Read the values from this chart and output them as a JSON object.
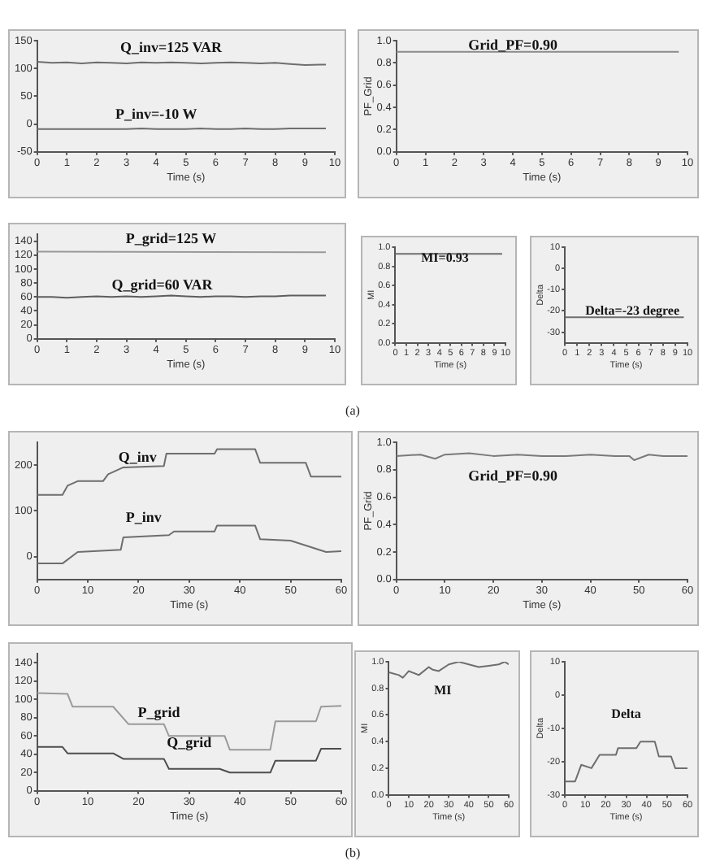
{
  "chart_data": [
    {
      "type": "line",
      "xlabel": "Time (s)",
      "xlim": [
        0,
        10
      ],
      "xticks": [
        0,
        1,
        2,
        3,
        4,
        5,
        6,
        7,
        8,
        9,
        10
      ],
      "ylim": [
        -50,
        150
      ],
      "yticks": [
        -50,
        0,
        50,
        100,
        150
      ],
      "grid": false,
      "legend": false,
      "marker": "none",
      "annotations": [
        "Q_inv=125 VAR",
        "P_inv=-10 W"
      ],
      "series": [
        {
          "color": "#6e6e6e",
          "x": [
            0,
            0.5,
            1,
            1.5,
            2,
            2.5,
            3,
            3.5,
            4,
            4.5,
            5,
            5.5,
            6,
            6.5,
            7,
            7.5,
            8,
            8.5,
            9,
            9.5,
            9.7
          ],
          "values": [
            112,
            110,
            111,
            109,
            111,
            110,
            109,
            111,
            110,
            111,
            110,
            109,
            110,
            111,
            110,
            109,
            110,
            108,
            106,
            107,
            107
          ]
        },
        {
          "color": "#6e6e6e",
          "x": [
            0,
            0.5,
            1,
            1.5,
            2,
            2.5,
            3,
            3.5,
            4,
            4.5,
            5,
            5.5,
            6,
            6.5,
            7,
            7.5,
            8,
            8.5,
            9,
            9.5,
            9.7
          ],
          "values": [
            -9,
            -9,
            -9,
            -9,
            -9,
            -9,
            -9,
            -8,
            -9,
            -9,
            -9,
            -8,
            -9,
            -9,
            -8,
            -9,
            -9,
            -8,
            -8,
            -8,
            -8
          ]
        }
      ]
    },
    {
      "type": "line",
      "xlabel": "Time (s)",
      "ylabel": "PF_Grid",
      "xlim": [
        0,
        10
      ],
      "xticks": [
        0,
        1,
        2,
        3,
        4,
        5,
        6,
        7,
        8,
        9,
        10
      ],
      "ylim": [
        0,
        1
      ],
      "yticks": [
        {
          "value": 0,
          "label": "0.0"
        },
        {
          "value": 0.2,
          "label": "0.2"
        },
        {
          "value": 0.4,
          "label": "0.4"
        },
        {
          "value": 0.6,
          "label": "0.6"
        },
        {
          "value": 0.8,
          "label": "0.8"
        },
        {
          "value": 1,
          "label": "1.0"
        }
      ],
      "grid": false,
      "legend": false,
      "marker": "none",
      "annotations": [
        "Grid_PF=0.90"
      ],
      "series": [
        {
          "color": "#8a8a8a",
          "x": [
            0,
            9.7
          ],
          "values": [
            0.9,
            0.9
          ]
        }
      ]
    },
    {
      "type": "line",
      "xlabel": "Time (s)",
      "xlim": [
        0,
        10
      ],
      "xticks": [
        0,
        1,
        2,
        3,
        4,
        5,
        6,
        7,
        8,
        9,
        10
      ],
      "ylim": [
        0,
        150
      ],
      "yticks": [
        0,
        20,
        40,
        60,
        80,
        100,
        120,
        140
      ],
      "grid": false,
      "legend": false,
      "marker": "none",
      "annotations": [
        "P_grid=125 W",
        "Q_grid=60 VAR"
      ],
      "series": [
        {
          "color": "#9a9a9a",
          "x": [
            0,
            9.7
          ],
          "values": [
            125,
            124
          ]
        },
        {
          "color": "#5e5e5e",
          "x": [
            0,
            0.5,
            1,
            1.5,
            2,
            2.5,
            3,
            3.5,
            4,
            4.5,
            5,
            5.5,
            6,
            6.5,
            7,
            7.5,
            8,
            8.5,
            9,
            9.5,
            9.7
          ],
          "values": [
            60,
            60,
            59,
            60,
            61,
            60,
            61,
            60,
            61,
            62,
            61,
            60,
            61,
            61,
            60,
            61,
            61,
            62,
            62,
            62,
            62
          ]
        }
      ]
    },
    {
      "type": "line",
      "xlabel": "Time (s)",
      "ylabel": "MI",
      "xlim": [
        0,
        10
      ],
      "xticks": [
        0,
        1,
        2,
        3,
        4,
        5,
        6,
        7,
        8,
        9,
        10
      ],
      "ylim": [
        0,
        1
      ],
      "yticks": [
        {
          "value": 0,
          "label": "0.0"
        },
        {
          "value": 0.2,
          "label": "0.2"
        },
        {
          "value": 0.4,
          "label": "0.4"
        },
        {
          "value": 0.6,
          "label": "0.6"
        },
        {
          "value": 0.8,
          "label": "0.8"
        },
        {
          "value": 1,
          "label": "1.0"
        }
      ],
      "grid": false,
      "legend": false,
      "marker": "none",
      "annotations": [
        "MI=0.93"
      ],
      "series": [
        {
          "color": "#6e6e6e",
          "x": [
            0,
            9.7
          ],
          "values": [
            0.93,
            0.93
          ]
        }
      ]
    },
    {
      "type": "line",
      "xlabel": "Time (s)",
      "ylabel": "Delta",
      "xlim": [
        0,
        10
      ],
      "xticks": [
        0,
        1,
        2,
        3,
        4,
        5,
        6,
        7,
        8,
        9,
        10
      ],
      "ylim": [
        -35,
        10
      ],
      "yticks": [
        -30,
        -20,
        -10,
        0,
        10
      ],
      "grid": false,
      "legend": false,
      "marker": "none",
      "annotations": [
        "Delta=-23 degree",
        "(a)"
      ],
      "series": [
        {
          "color": "#6e6e6e",
          "x": [
            0,
            9.7
          ],
          "values": [
            -23,
            -23
          ]
        }
      ]
    },
    {
      "type": "line",
      "xlabel": "Time (s)",
      "xlim": [
        0,
        60
      ],
      "xticks": [
        0,
        10,
        20,
        30,
        40,
        50,
        60
      ],
      "ylim": [
        -50,
        250
      ],
      "yticks": [
        0,
        100,
        200
      ],
      "grid": false,
      "legend": false,
      "marker": "none",
      "annotations": [
        "Q_inv",
        "P_inv"
      ],
      "series": [
        {
          "color": "#6e6e6e",
          "x": [
            0,
            5,
            6,
            8,
            13,
            14,
            17,
            25,
            25.5,
            35,
            35.5,
            43,
            44,
            53,
            54,
            60
          ],
          "values": [
            135,
            135,
            155,
            165,
            165,
            180,
            195,
            198,
            225,
            225,
            235,
            235,
            205,
            205,
            175,
            175
          ]
        },
        {
          "color": "#6e6e6e",
          "x": [
            0,
            5,
            8,
            16.5,
            17,
            26,
            27,
            35,
            35.5,
            43,
            44,
            50,
            57,
            60
          ],
          "values": [
            -15,
            -15,
            10,
            15,
            42,
            47,
            55,
            55,
            68,
            68,
            38,
            35,
            10,
            12
          ]
        }
      ]
    },
    {
      "type": "line",
      "xlabel": "Time (s)",
      "ylabel": "PF_Grid",
      "xlim": [
        0,
        60
      ],
      "xticks": [
        0,
        10,
        20,
        30,
        40,
        50,
        60
      ],
      "ylim": [
        0,
        1
      ],
      "yticks": [
        {
          "value": 0,
          "label": "0.0"
        },
        {
          "value": 0.2,
          "label": "0.2"
        },
        {
          "value": 0.4,
          "label": "0.4"
        },
        {
          "value": 0.6,
          "label": "0.6"
        },
        {
          "value": 0.8,
          "label": "0.8"
        },
        {
          "value": 1,
          "label": "1.0"
        }
      ],
      "grid": false,
      "legend": false,
      "marker": "none",
      "annotations": [
        "Grid_PF=0.90"
      ],
      "series": [
        {
          "color": "#7a7a7a",
          "x": [
            0,
            5,
            8,
            10,
            15,
            20,
            25,
            30,
            35,
            40,
            45,
            48,
            49,
            52,
            55,
            60
          ],
          "values": [
            0.9,
            0.91,
            0.88,
            0.91,
            0.92,
            0.9,
            0.91,
            0.9,
            0.9,
            0.91,
            0.9,
            0.9,
            0.87,
            0.91,
            0.9,
            0.9
          ]
        }
      ]
    },
    {
      "type": "line",
      "xlabel": "Time (s)",
      "xlim": [
        0,
        60
      ],
      "xticks": [
        0,
        10,
        20,
        30,
        40,
        50,
        60
      ],
      "ylim": [
        0,
        150
      ],
      "yticks": [
        0,
        20,
        40,
        60,
        80,
        100,
        120,
        140
      ],
      "grid": false,
      "legend": false,
      "marker": "none",
      "annotations": [
        "P_grid",
        "Q_grid"
      ],
      "series": [
        {
          "color": "#9a9a9a",
          "x": [
            0,
            6,
            7,
            15,
            18,
            25,
            26,
            37,
            38,
            46,
            47,
            55,
            56,
            60
          ],
          "values": [
            107,
            106,
            92,
            92,
            73,
            73,
            60,
            60,
            45,
            45,
            76,
            76,
            92,
            93
          ]
        },
        {
          "color": "#4e4e4e",
          "x": [
            0,
            5,
            6,
            15,
            17,
            25,
            26,
            36,
            38,
            46,
            47,
            55,
            56,
            60
          ],
          "values": [
            48,
            48,
            41,
            41,
            35,
            35,
            24,
            24,
            20,
            20,
            33,
            33,
            46,
            46
          ]
        }
      ]
    },
    {
      "type": "line",
      "xlabel": "Time (s)",
      "ylabel": "MI",
      "xlim": [
        0,
        60
      ],
      "xticks": [
        0,
        10,
        20,
        30,
        40,
        50,
        60
      ],
      "ylim": [
        0,
        1
      ],
      "yticks": [
        {
          "value": 0,
          "label": "0.0"
        },
        {
          "value": 0.2,
          "label": "0.2"
        },
        {
          "value": 0.4,
          "label": "0.4"
        },
        {
          "value": 0.6,
          "label": "0.6"
        },
        {
          "value": 0.8,
          "label": "0.8"
        },
        {
          "value": 1,
          "label": "1.0"
        }
      ],
      "grid": false,
      "legend": false,
      "marker": "none",
      "annotations": [
        "MI"
      ],
      "series": [
        {
          "color": "#6e6e6e",
          "x": [
            0,
            5,
            7,
            10,
            15,
            20,
            22,
            25,
            30,
            35,
            40,
            45,
            50,
            55,
            58,
            60
          ],
          "values": [
            0.92,
            0.9,
            0.88,
            0.93,
            0.9,
            0.96,
            0.94,
            0.93,
            0.98,
            1.0,
            0.98,
            0.96,
            0.97,
            0.98,
            1.0,
            0.98
          ]
        }
      ]
    },
    {
      "type": "line",
      "xlabel": "Time (s)",
      "ylabel": "Delta",
      "xlim": [
        0,
        60
      ],
      "xticks": [
        0,
        10,
        20,
        30,
        40,
        50,
        60
      ],
      "ylim": [
        -30,
        10
      ],
      "yticks": [
        -30,
        -20,
        -10,
        0,
        10
      ],
      "grid": false,
      "legend": false,
      "marker": "none",
      "annotations": [
        "Delta",
        "(b)"
      ],
      "series": [
        {
          "color": "#6e6e6e",
          "x": [
            0,
            5,
            8,
            13,
            17,
            25,
            26,
            35,
            37,
            44,
            46,
            52,
            54,
            60
          ],
          "values": [
            -26,
            -26,
            -21,
            -22,
            -18,
            -18,
            -16,
            -16,
            -14,
            -14,
            -18.5,
            -18.5,
            -22,
            -22
          ]
        }
      ]
    }
  ]
}
